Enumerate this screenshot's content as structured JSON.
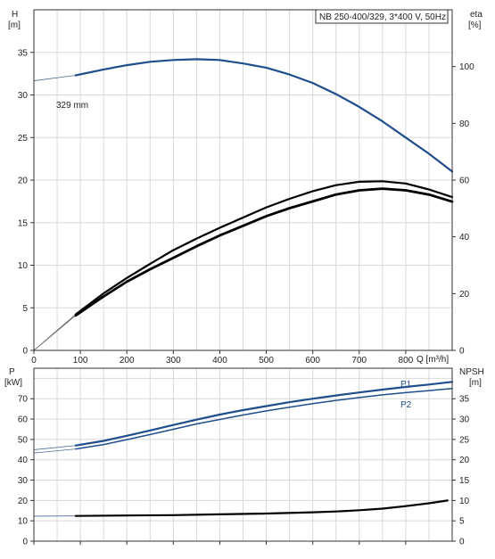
{
  "chart_data": [
    {
      "type": "line",
      "title": "NB 250-400/329, 3*400 V, 50Hz",
      "xlabel": "Q [m³/h]",
      "ylabel": [
        "H",
        "[m]"
      ],
      "y2label": [
        "eta",
        "[%]"
      ],
      "xlim": [
        0,
        900
      ],
      "ylim": [
        0,
        40
      ],
      "y2lim": [
        0,
        120
      ],
      "x_ticks": [
        "0",
        "100",
        "200",
        "300",
        "400",
        "500",
        "600",
        "700",
        "800"
      ],
      "y_ticks": [
        "0",
        "5",
        "10",
        "15",
        "20",
        "25",
        "30",
        "35"
      ],
      "y2_ticks": [
        "0",
        "20",
        "40",
        "60",
        "80",
        "100"
      ],
      "grid": true,
      "annotations": [
        "329 mm"
      ],
      "series": [
        {
          "name": "329 mm",
          "axis": "left",
          "color": "#1f4e8c",
          "x": [
            90,
            150,
            200,
            250,
            300,
            350,
            400,
            450,
            500,
            550,
            600,
            650,
            700,
            750,
            800,
            850,
            900
          ],
          "y": [
            32.3,
            33.0,
            33.5,
            33.9,
            34.1,
            34.2,
            34.1,
            33.7,
            33.2,
            32.4,
            31.4,
            30.1,
            28.6,
            26.9,
            25.0,
            23.1,
            21.0
          ]
        },
        {
          "axis": "right",
          "color": "#000000",
          "x": [
            90,
            150,
            200,
            250,
            300,
            350,
            400,
            450,
            500,
            550,
            600,
            650,
            700,
            750,
            800,
            850,
            900
          ],
          "y": [
            12.3,
            19.0,
            24.2,
            28.6,
            32.6,
            36.7,
            40.5,
            43.9,
            47.3,
            50.1,
            52.5,
            54.9,
            56.4,
            57.0,
            56.4,
            54.9,
            52.4
          ]
        },
        {
          "axis": "right",
          "color": "#000000",
          "x": [
            90,
            150,
            200,
            250,
            300,
            350,
            400,
            450,
            500,
            550,
            600,
            650,
            700,
            750,
            800,
            850,
            900
          ],
          "y": [
            12.7,
            20.1,
            25.5,
            30.5,
            35.3,
            39.4,
            43.2,
            46.8,
            50.4,
            53.4,
            56.1,
            58.2,
            59.4,
            59.6,
            58.8,
            56.7,
            54.0
          ]
        }
      ]
    },
    {
      "type": "line",
      "ylabel": [
        "P",
        "[kW]"
      ],
      "y2label": [
        "NPSH",
        "[m]"
      ],
      "xlim": [
        0,
        900
      ],
      "ylim": [
        0,
        85
      ],
      "y2lim": [
        0,
        42.5
      ],
      "y_ticks": [
        "0",
        "10",
        "20",
        "30",
        "40",
        "50",
        "60",
        "70"
      ],
      "y2_ticks": [
        "0",
        "5",
        "10",
        "15",
        "20",
        "25",
        "30",
        "35"
      ],
      "grid": true,
      "series": [
        {
          "name": "P1",
          "axis": "left",
          "color": "#1f4e8c",
          "x": [
            90,
            150,
            200,
            250,
            300,
            350,
            400,
            450,
            500,
            550,
            600,
            650,
            700,
            750,
            800,
            850,
            900
          ],
          "y": [
            47.0,
            49.3,
            51.8,
            54.4,
            57.1,
            59.7,
            62.2,
            64.4,
            66.4,
            68.3,
            70.0,
            71.6,
            73.1,
            74.5,
            75.8,
            77.0,
            78.3
          ]
        },
        {
          "name": "P2",
          "axis": "left",
          "color": "#1f4e8c",
          "x": [
            90,
            150,
            200,
            250,
            300,
            350,
            400,
            450,
            500,
            550,
            600,
            650,
            700,
            750,
            800,
            850,
            900
          ],
          "y": [
            45.3,
            47.5,
            49.9,
            52.4,
            55.0,
            57.6,
            59.8,
            62.0,
            64.0,
            65.8,
            67.6,
            69.2,
            70.6,
            71.9,
            73.0,
            74.0,
            75.0
          ]
        },
        {
          "axis": "right",
          "color": "#000000",
          "x": [
            90,
            200,
            300,
            400,
            500,
            600,
            650,
            700,
            750,
            800,
            850,
            890
          ],
          "y": [
            6.2,
            6.3,
            6.4,
            6.6,
            6.8,
            7.1,
            7.3,
            7.6,
            8.0,
            8.6,
            9.3,
            10.0
          ]
        }
      ]
    }
  ]
}
